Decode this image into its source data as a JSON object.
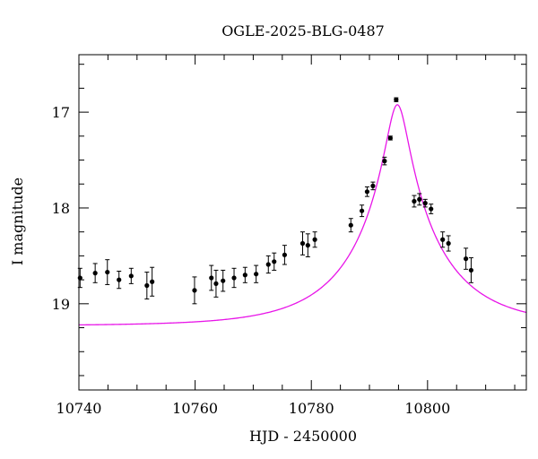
{
  "chart_data": {
    "type": "scatter",
    "title": "OGLE-2025-BLG-0487",
    "xlabel": "HJD - 2450000",
    "ylabel": "I magnitude",
    "xlim": [
      10740,
      10817
    ],
    "ylim": [
      19.9,
      16.4
    ],
    "y_inverted": true,
    "xticks": [
      10740,
      10760,
      10780,
      10800
    ],
    "yticks": [
      17,
      18,
      19
    ],
    "grid": false,
    "colors": {
      "points": "#000000",
      "model": "#e815e8",
      "axes": "#000000"
    },
    "series": [
      {
        "type": "scatter_errorbar",
        "points": [
          {
            "x": 10740.2,
            "y": 18.73,
            "err": 0.1
          },
          {
            "x": 10742.8,
            "y": 18.68,
            "err": 0.1
          },
          {
            "x": 10744.9,
            "y": 18.67,
            "err": 0.13
          },
          {
            "x": 10746.9,
            "y": 18.75,
            "err": 0.09
          },
          {
            "x": 10749.0,
            "y": 18.71,
            "err": 0.08
          },
          {
            "x": 10751.7,
            "y": 18.81,
            "err": 0.14
          },
          {
            "x": 10752.6,
            "y": 18.77,
            "err": 0.15
          },
          {
            "x": 10759.9,
            "y": 18.86,
            "err": 0.14
          },
          {
            "x": 10762.8,
            "y": 18.73,
            "err": 0.13
          },
          {
            "x": 10763.6,
            "y": 18.79,
            "err": 0.14
          },
          {
            "x": 10764.8,
            "y": 18.76,
            "err": 0.11
          },
          {
            "x": 10766.7,
            "y": 18.73,
            "err": 0.1
          },
          {
            "x": 10768.6,
            "y": 18.7,
            "err": 0.08
          },
          {
            "x": 10770.5,
            "y": 18.69,
            "err": 0.09
          },
          {
            "x": 10772.6,
            "y": 18.59,
            "err": 0.09
          },
          {
            "x": 10773.6,
            "y": 18.56,
            "err": 0.09
          },
          {
            "x": 10775.4,
            "y": 18.49,
            "err": 0.1
          },
          {
            "x": 10778.5,
            "y": 18.37,
            "err": 0.12
          },
          {
            "x": 10779.4,
            "y": 18.39,
            "err": 0.12
          },
          {
            "x": 10780.6,
            "y": 18.33,
            "err": 0.08
          },
          {
            "x": 10786.8,
            "y": 18.18,
            "err": 0.07
          },
          {
            "x": 10788.7,
            "y": 18.03,
            "err": 0.06
          },
          {
            "x": 10789.6,
            "y": 17.83,
            "err": 0.05
          },
          {
            "x": 10790.6,
            "y": 17.77,
            "err": 0.04
          },
          {
            "x": 10792.6,
            "y": 17.51,
            "err": 0.04
          },
          {
            "x": 10793.6,
            "y": 17.27,
            "err": 0.02
          },
          {
            "x": 10794.6,
            "y": 16.87,
            "err": 0.02
          },
          {
            "x": 10797.7,
            "y": 17.93,
            "err": 0.06
          },
          {
            "x": 10798.6,
            "y": 17.91,
            "err": 0.06
          },
          {
            "x": 10799.6,
            "y": 17.95,
            "err": 0.04
          },
          {
            "x": 10800.6,
            "y": 18.01,
            "err": 0.05
          },
          {
            "x": 10802.6,
            "y": 18.33,
            "err": 0.08
          },
          {
            "x": 10803.6,
            "y": 18.37,
            "err": 0.08
          },
          {
            "x": 10806.6,
            "y": 18.53,
            "err": 0.11
          },
          {
            "x": 10807.5,
            "y": 18.65,
            "err": 0.13
          }
        ]
      },
      {
        "type": "line",
        "model": {
          "t0": 10794.8,
          "tE": 15,
          "u0": 0.12,
          "mag_base": 19.23
        }
      }
    ]
  }
}
